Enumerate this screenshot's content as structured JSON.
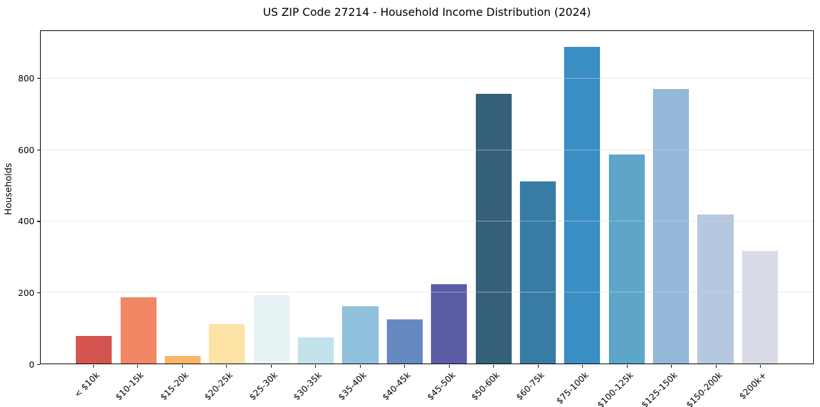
{
  "chart_data": {
    "type": "bar",
    "title": "US ZIP Code 27214 - Household Income Distribution (2024)",
    "xlabel": "",
    "ylabel": "Households",
    "categories": [
      "< $10k",
      "$10-15k",
      "$15-20k",
      "$20-25k",
      "$25-30k",
      "$30-35k",
      "$35-40k",
      "$40-45k",
      "$45-50k",
      "$50-60k",
      "$60-75k",
      "$75-100k",
      "$100-125k",
      "$125-150k",
      "$150-200k",
      "$200k+"
    ],
    "values": [
      77,
      186,
      21,
      111,
      192,
      74,
      161,
      124,
      223,
      758,
      512,
      890,
      588,
      772,
      418,
      316
    ],
    "bar_colors": [
      "#d4544f",
      "#f28765",
      "#f9b668",
      "#fce2a5",
      "#e7f2f5",
      "#c2e3ec",
      "#8fc1dc",
      "#6689c2",
      "#5c5ba6",
      "#35607a",
      "#377ca4",
      "#398ec4",
      "#5da6c9",
      "#93b8d9",
      "#b6c8e0",
      "#d9dce8"
    ],
    "ylim": [
      0,
      934.5
    ],
    "yticks": [
      0,
      200,
      400,
      600,
      800
    ],
    "grid": "horizontal-above-bars",
    "legend": "none",
    "x_tick_rotation": 45,
    "spine_color": "#000000",
    "grid_color": "#dcdce2",
    "background_color": "#ffffff"
  }
}
